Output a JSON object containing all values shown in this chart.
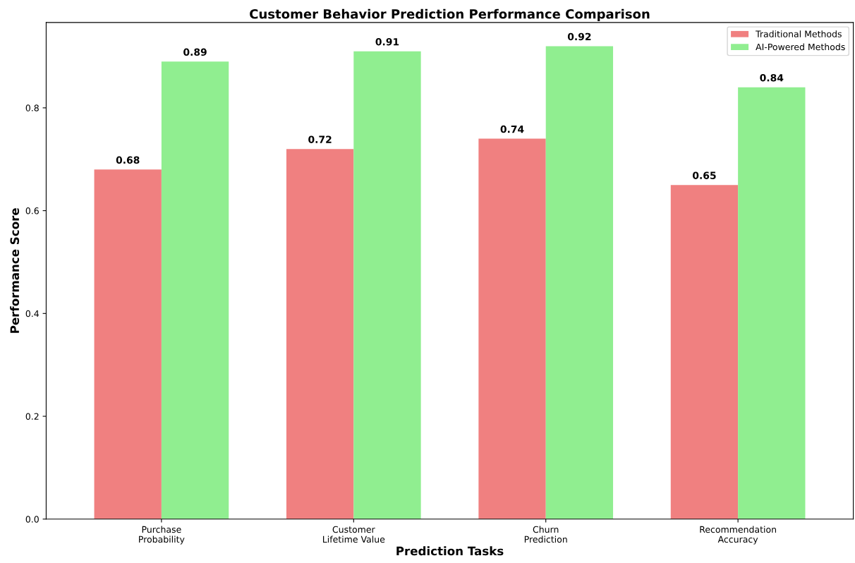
{
  "chart_data": {
    "type": "bar",
    "title": "Customer Behavior Prediction Performance Comparison",
    "xlabel": "Prediction Tasks",
    "ylabel": "Performance Score",
    "categories": [
      "Purchase\nProbability",
      "Customer\nLifetime Value",
      "Churn\nPrediction",
      "Recommendation\nAccuracy"
    ],
    "series": [
      {
        "name": "Traditional Methods",
        "color": "#f08080",
        "values": [
          0.68,
          0.72,
          0.74,
          0.65
        ]
      },
      {
        "name": "AI-Powered Methods",
        "color": "#90ee90",
        "values": [
          0.89,
          0.91,
          0.92,
          0.84
        ]
      }
    ],
    "ylim": [
      0,
      0.966
    ],
    "yticks": [
      {
        "value": 0,
        "label": "0.0"
      },
      {
        "value": 0.2,
        "label": "0.2"
      },
      {
        "value": 0.4,
        "label": "0.4"
      },
      {
        "value": 0.6,
        "label": "0.6"
      },
      {
        "value": 0.8,
        "label": "0.8"
      }
    ],
    "data_labels": true,
    "legend": "top right",
    "grid": false
  }
}
